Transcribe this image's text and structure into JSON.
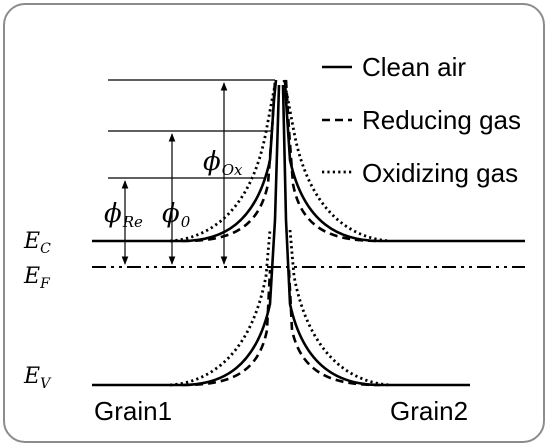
{
  "legend": [
    {
      "label": "Clean air",
      "style": "solid"
    },
    {
      "label": "Reducing gas",
      "style": "dashed"
    },
    {
      "label": "Oxidizing gas",
      "style": "dotted"
    }
  ],
  "levels": {
    "ec": {
      "sym": "E",
      "sub": "C"
    },
    "ef": {
      "sym": "E",
      "sub": "F"
    },
    "ev": {
      "sym": "E",
      "sub": "V"
    }
  },
  "barriers": {
    "ox": {
      "sym": "ϕ",
      "sub": "Ox"
    },
    "zero": {
      "sym": "ϕ",
      "sub": "0"
    },
    "re": {
      "sym": "ϕ",
      "sub": "Re"
    }
  },
  "grains": {
    "left": "Grain1",
    "right": "Grain2"
  },
  "colors": {
    "line": "#000000",
    "frame": "#8c8c8c"
  }
}
